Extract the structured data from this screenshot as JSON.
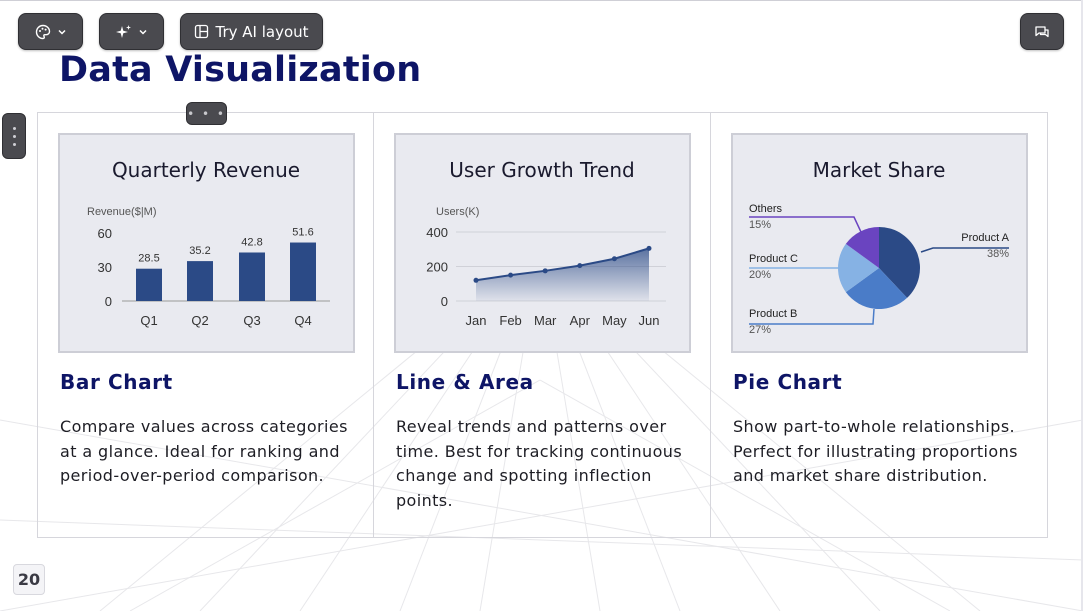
{
  "toolbar": {
    "theme_icon": "palette-icon",
    "ai_icon": "sparkle-icon",
    "ai_layout_label": "Try AI layout",
    "comments_icon": "comments-icon"
  },
  "slide": {
    "title": "Data Visualization",
    "page_number": "20"
  },
  "colors": {
    "title": "#0e1566",
    "bar": "#2b4a86",
    "line": "#2b4a86",
    "pie": [
      "#2b4a86",
      "#4a7cc8",
      "#86b2e4",
      "#6a44c0"
    ],
    "toolbar_bg": "#4a4a4f",
    "chart_bg": "#e9eaf0"
  },
  "cards": [
    {
      "heading": "Bar Chart",
      "description": "Compare values across categories at a glance. Ideal for ranking and period-over-period comparison."
    },
    {
      "heading": "Line & Area",
      "description": "Reveal trends and patterns over time. Best for tracking continuous change and spotting inflection points."
    },
    {
      "heading": "Pie Chart",
      "description": "Show part-to-whole relationships. Perfect for illustrating proportions and market share distribution."
    }
  ],
  "chart_data": [
    {
      "type": "bar",
      "title": "Quarterly Revenue",
      "ylabel": "Revenue($|M)",
      "categories": [
        "Q1",
        "Q2",
        "Q3",
        "Q4"
      ],
      "values": [
        28.5,
        35.2,
        42.8,
        51.6
      ],
      "value_labels": [
        "28.5",
        "35.2",
        "42.8",
        "51.6"
      ],
      "yticks": [
        "0",
        "30",
        "60"
      ],
      "ylim": [
        0,
        60
      ],
      "grid": false
    },
    {
      "type": "area",
      "title": "User Growth Trend",
      "ylabel": "Users(K)",
      "categories": [
        "Jan",
        "Feb",
        "Mar",
        "Apr",
        "May",
        "Jun"
      ],
      "values": [
        120,
        150,
        175,
        205,
        245,
        305
      ],
      "yticks": [
        "0",
        "200",
        "400"
      ],
      "ylim": [
        0,
        400
      ],
      "grid": true
    },
    {
      "type": "pie",
      "title": "Market Share",
      "labels": [
        "Product A",
        "Product B",
        "Product C",
        "Others"
      ],
      "values": [
        38,
        27,
        20,
        15
      ],
      "value_labels": [
        "38%",
        "27%",
        "20%",
        "15%"
      ]
    }
  ]
}
